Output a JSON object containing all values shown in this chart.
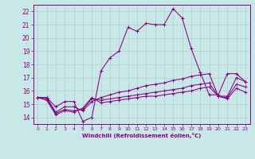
{
  "xlabel": "Windchill (Refroidissement éolien,°C)",
  "xlim": [
    -0.5,
    23.5
  ],
  "ylim": [
    13.5,
    22.5
  ],
  "xticks": [
    0,
    1,
    2,
    3,
    4,
    5,
    6,
    7,
    8,
    9,
    10,
    11,
    12,
    13,
    14,
    15,
    16,
    17,
    18,
    19,
    20,
    21,
    22,
    23
  ],
  "yticks": [
    14,
    15,
    16,
    17,
    18,
    19,
    20,
    21,
    22
  ],
  "bg_color": "#c8e8e8",
  "line_color": "#880088",
  "grid_color": "#b0d0d0",
  "curves": [
    {
      "x": [
        0,
        1,
        2,
        3,
        4,
        5,
        6,
        7,
        8,
        9,
        10,
        11,
        12,
        13,
        14,
        15,
        16,
        17,
        18,
        19,
        20,
        21,
        22,
        23
      ],
      "y": [
        15.5,
        15.5,
        14.8,
        15.2,
        15.2,
        13.7,
        14.0,
        17.5,
        18.5,
        19.0,
        20.8,
        20.5,
        21.1,
        21.0,
        21.0,
        22.2,
        21.5,
        19.2,
        17.4,
        15.7,
        15.7,
        17.3,
        17.3,
        16.7
      ]
    },
    {
      "x": [
        0,
        1,
        2,
        3,
        4,
        5,
        6,
        7,
        8,
        9,
        10,
        11,
        12,
        13,
        14,
        15,
        16,
        17,
        18,
        19,
        20,
        21,
        22,
        23
      ],
      "y": [
        15.5,
        15.5,
        14.4,
        14.8,
        14.8,
        14.5,
        15.2,
        15.5,
        15.7,
        15.9,
        16.0,
        16.2,
        16.4,
        16.5,
        16.6,
        16.8,
        16.9,
        17.1,
        17.2,
        17.3,
        15.6,
        15.6,
        17.0,
        16.7
      ]
    },
    {
      "x": [
        0,
        1,
        2,
        3,
        4,
        5,
        6,
        7,
        8,
        9,
        10,
        11,
        12,
        13,
        14,
        15,
        16,
        17,
        18,
        19,
        20,
        21,
        22,
        23
      ],
      "y": [
        15.5,
        15.4,
        14.3,
        14.6,
        14.5,
        14.6,
        15.4,
        15.3,
        15.4,
        15.5,
        15.6,
        15.7,
        15.8,
        15.9,
        16.0,
        16.1,
        16.2,
        16.4,
        16.5,
        16.6,
        15.6,
        15.5,
        16.5,
        16.3
      ]
    },
    {
      "x": [
        0,
        1,
        2,
        3,
        4,
        5,
        6,
        7,
        8,
        9,
        10,
        11,
        12,
        13,
        14,
        15,
        16,
        17,
        18,
        19,
        20,
        21,
        22,
        23
      ],
      "y": [
        15.5,
        15.3,
        14.2,
        14.5,
        14.4,
        14.7,
        15.5,
        15.1,
        15.2,
        15.3,
        15.4,
        15.5,
        15.6,
        15.6,
        15.7,
        15.8,
        15.9,
        16.0,
        16.2,
        16.3,
        15.6,
        15.4,
        16.2,
        15.9
      ]
    }
  ]
}
